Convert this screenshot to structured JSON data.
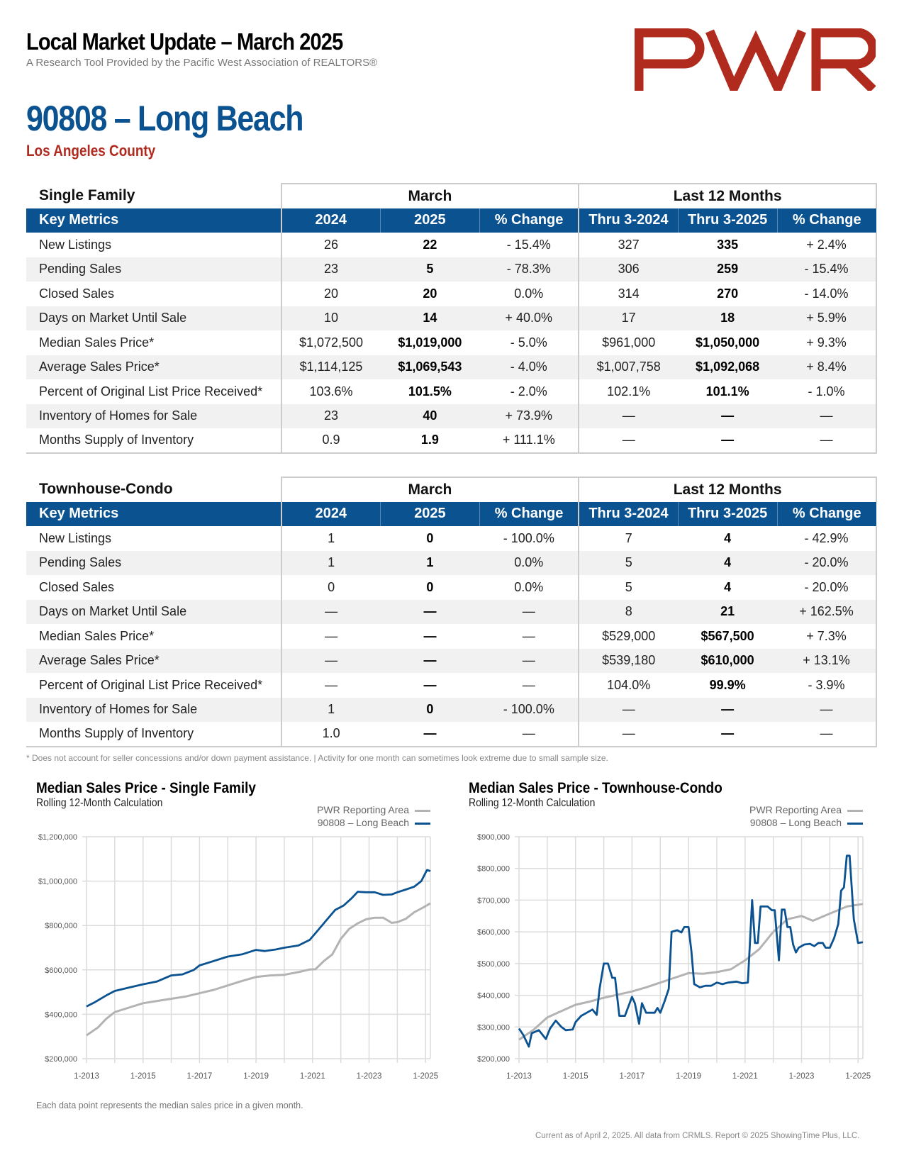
{
  "header": {
    "title": "Local Market Update – March 2025",
    "subtitle": "A Research Tool Provided by the Pacific West Association of REALTORS®",
    "logo_text": "PWR",
    "area_title": "90808 – Long Beach",
    "county": "Los Angeles County"
  },
  "colors": {
    "brand_blue": "#0b5291",
    "brand_red": "#b02a1e",
    "pwr_line": "#b3b3b3",
    "area_line": "#0b5291"
  },
  "tables": [
    {
      "section": "Single Family",
      "group_march": "March",
      "group_12m": "Last 12 Months",
      "columns": [
        "Key Metrics",
        "2024",
        "2025",
        "% Change",
        "Thru 3-2024",
        "Thru 3-2025",
        "% Change"
      ],
      "rows": [
        [
          "New Listings",
          "26",
          "22",
          "- 15.4%",
          "327",
          "335",
          "+ 2.4%"
        ],
        [
          "Pending Sales",
          "23",
          "5",
          "- 78.3%",
          "306",
          "259",
          "- 15.4%"
        ],
        [
          "Closed Sales",
          "20",
          "20",
          "0.0%",
          "314",
          "270",
          "- 14.0%"
        ],
        [
          "Days on Market Until Sale",
          "10",
          "14",
          "+ 40.0%",
          "17",
          "18",
          "+ 5.9%"
        ],
        [
          "Median Sales Price*",
          "$1,072,500",
          "$1,019,000",
          "- 5.0%",
          "$961,000",
          "$1,050,000",
          "+ 9.3%"
        ],
        [
          "Average Sales Price*",
          "$1,114,125",
          "$1,069,543",
          "- 4.0%",
          "$1,007,758",
          "$1,092,068",
          "+ 8.4%"
        ],
        [
          "Percent of Original List Price Received*",
          "103.6%",
          "101.5%",
          "- 2.0%",
          "102.1%",
          "101.1%",
          "- 1.0%"
        ],
        [
          "Inventory of Homes for Sale",
          "23",
          "40",
          "+ 73.9%",
          "—",
          "—",
          "—"
        ],
        [
          "Months Supply of Inventory",
          "0.9",
          "1.9",
          "+ 111.1%",
          "—",
          "—",
          "—"
        ]
      ]
    },
    {
      "section": "Townhouse-Condo",
      "group_march": "March",
      "group_12m": "Last 12 Months",
      "columns": [
        "Key Metrics",
        "2024",
        "2025",
        "% Change",
        "Thru 3-2024",
        "Thru 3-2025",
        "% Change"
      ],
      "rows": [
        [
          "New Listings",
          "1",
          "0",
          "- 100.0%",
          "7",
          "4",
          "- 42.9%"
        ],
        [
          "Pending Sales",
          "1",
          "1",
          "0.0%",
          "5",
          "4",
          "- 20.0%"
        ],
        [
          "Closed Sales",
          "0",
          "0",
          "0.0%",
          "5",
          "4",
          "- 20.0%"
        ],
        [
          "Days on Market Until Sale",
          "—",
          "—",
          "—",
          "8",
          "21",
          "+ 162.5%"
        ],
        [
          "Median Sales Price*",
          "—",
          "—",
          "—",
          "$529,000",
          "$567,500",
          "+ 7.3%"
        ],
        [
          "Average Sales Price*",
          "—",
          "—",
          "—",
          "$539,180",
          "$610,000",
          "+ 13.1%"
        ],
        [
          "Percent of Original List Price Received*",
          "—",
          "—",
          "—",
          "104.0%",
          "99.9%",
          "- 3.9%"
        ],
        [
          "Inventory of Homes for Sale",
          "1",
          "0",
          "- 100.0%",
          "—",
          "—",
          "—"
        ],
        [
          "Months Supply of Inventory",
          "1.0",
          "—",
          "—",
          "—",
          "—",
          "—"
        ]
      ]
    }
  ],
  "footnote": "* Does not account for seller concessions and/or down payment assistance. | Activity for one month can sometimes look extreme due to small sample size.",
  "chart_note": "Each data point represents the median sales price in a given month.",
  "footer": "Current as of April 2, 2025. All data from CRMLS. Report © 2025 ShowingTime Plus, LLC.",
  "chart_data": [
    {
      "type": "line",
      "title": "Median Sales Price - Single Family",
      "subtitle": "Rolling 12-Month Calculation",
      "xlabel": "",
      "ylabel": "",
      "x_range": [
        2013.0,
        2025.17
      ],
      "ylim": [
        200000,
        1200000
      ],
      "y_ticks": [
        200000,
        400000,
        600000,
        800000,
        1000000,
        1200000
      ],
      "y_tick_labels": [
        "$200,000",
        "$400,000",
        "$600,000",
        "$800,000",
        "$1,000,000",
        "$1,200,000"
      ],
      "x_ticks": [
        2013,
        2015,
        2017,
        2019,
        2021,
        2023,
        2025
      ],
      "x_tick_labels": [
        "1-2013",
        "1-2015",
        "1-2017",
        "1-2019",
        "1-2021",
        "1-2023",
        "1-2025"
      ],
      "grid": true,
      "legend_position": "top-right",
      "series": [
        {
          "name": "PWR Reporting Area",
          "color": "#b3b3b3",
          "points": [
            [
              2013.0,
              305000
            ],
            [
              2013.4,
              340000
            ],
            [
              2013.7,
              380000
            ],
            [
              2014.0,
              410000
            ],
            [
              2014.5,
              430000
            ],
            [
              2015.0,
              450000
            ],
            [
              2015.5,
              460000
            ],
            [
              2016.0,
              470000
            ],
            [
              2016.5,
              480000
            ],
            [
              2017.0,
              495000
            ],
            [
              2017.5,
              510000
            ],
            [
              2018.0,
              530000
            ],
            [
              2018.5,
              550000
            ],
            [
              2019.0,
              568000
            ],
            [
              2019.5,
              575000
            ],
            [
              2020.0,
              578000
            ],
            [
              2020.5,
              590000
            ],
            [
              2020.9,
              602000
            ],
            [
              2021.1,
              603000
            ],
            [
              2021.4,
              640000
            ],
            [
              2021.7,
              670000
            ],
            [
              2022.0,
              740000
            ],
            [
              2022.3,
              785000
            ],
            [
              2022.6,
              810000
            ],
            [
              2022.9,
              828000
            ],
            [
              2023.2,
              835000
            ],
            [
              2023.5,
              835000
            ],
            [
              2023.8,
              812000
            ],
            [
              2024.0,
              815000
            ],
            [
              2024.3,
              830000
            ],
            [
              2024.6,
              860000
            ],
            [
              2024.9,
              880000
            ],
            [
              2025.17,
              900000
            ]
          ]
        },
        {
          "name": "90808 – Long Beach",
          "color": "#0b5291",
          "points": [
            [
              2013.0,
              435000
            ],
            [
              2013.3,
              455000
            ],
            [
              2013.7,
              485000
            ],
            [
              2014.0,
              505000
            ],
            [
              2014.5,
              520000
            ],
            [
              2015.0,
              535000
            ],
            [
              2015.5,
              548000
            ],
            [
              2016.0,
              575000
            ],
            [
              2016.4,
              580000
            ],
            [
              2016.8,
              600000
            ],
            [
              2017.0,
              620000
            ],
            [
              2017.5,
              640000
            ],
            [
              2018.0,
              660000
            ],
            [
              2018.5,
              670000
            ],
            [
              2019.0,
              690000
            ],
            [
              2019.3,
              685000
            ],
            [
              2019.7,
              692000
            ],
            [
              2020.0,
              700000
            ],
            [
              2020.5,
              710000
            ],
            [
              2020.9,
              735000
            ],
            [
              2021.2,
              780000
            ],
            [
              2021.5,
              825000
            ],
            [
              2021.8,
              870000
            ],
            [
              2022.1,
              890000
            ],
            [
              2022.4,
              925000
            ],
            [
              2022.6,
              952000
            ],
            [
              2022.9,
              950000
            ],
            [
              2023.2,
              950000
            ],
            [
              2023.5,
              938000
            ],
            [
              2023.8,
              940000
            ],
            [
              2024.0,
              950000
            ],
            [
              2024.3,
              962000
            ],
            [
              2024.6,
              975000
            ],
            [
              2024.85,
              1000000
            ],
            [
              2025.05,
              1050000
            ],
            [
              2025.17,
              1045000
            ]
          ]
        }
      ]
    },
    {
      "type": "line",
      "title": "Median Sales Price - Townhouse-Condo",
      "subtitle": "Rolling 12-Month Calculation",
      "xlabel": "",
      "ylabel": "",
      "x_range": [
        2013.0,
        2025.17
      ],
      "ylim": [
        200000,
        900000
      ],
      "y_ticks": [
        200000,
        300000,
        400000,
        500000,
        600000,
        700000,
        800000,
        900000
      ],
      "y_tick_labels": [
        "$200,000",
        "$300,000",
        "$400,000",
        "$500,000",
        "$600,000",
        "$700,000",
        "$800,000",
        "$900,000"
      ],
      "x_ticks": [
        2013,
        2015,
        2017,
        2019,
        2021,
        2023,
        2025
      ],
      "x_tick_labels": [
        "1-2013",
        "1-2015",
        "1-2017",
        "1-2019",
        "1-2021",
        "1-2023",
        "1-2025"
      ],
      "grid": true,
      "legend_position": "top-right",
      "series": [
        {
          "name": "PWR Reporting Area",
          "color": "#b3b3b3",
          "points": [
            [
              2013.0,
              260000
            ],
            [
              2013.5,
              290000
            ],
            [
              2014.0,
              330000
            ],
            [
              2014.5,
              350000
            ],
            [
              2015.0,
              370000
            ],
            [
              2015.5,
              380000
            ],
            [
              2016.0,
              392000
            ],
            [
              2016.5,
              402000
            ],
            [
              2017.0,
              412000
            ],
            [
              2017.5,
              425000
            ],
            [
              2018.0,
              440000
            ],
            [
              2018.5,
              455000
            ],
            [
              2019.0,
              470000
            ],
            [
              2019.5,
              468000
            ],
            [
              2020.0,
              473000
            ],
            [
              2020.5,
              482000
            ],
            [
              2021.0,
              510000
            ],
            [
              2021.5,
              545000
            ],
            [
              2022.0,
              600000
            ],
            [
              2022.5,
              640000
            ],
            [
              2023.0,
              650000
            ],
            [
              2023.4,
              635000
            ],
            [
              2023.8,
              650000
            ],
            [
              2024.2,
              665000
            ],
            [
              2024.6,
              680000
            ],
            [
              2025.17,
              688000
            ]
          ]
        },
        {
          "name": "90808 – Long Beach",
          "color": "#0b5291",
          "points": [
            [
              2013.0,
              295000
            ],
            [
              2013.15,
              275000
            ],
            [
              2013.35,
              238000
            ],
            [
              2013.45,
              280000
            ],
            [
              2013.7,
              290000
            ],
            [
              2013.95,
              262000
            ],
            [
              2014.1,
              295000
            ],
            [
              2014.3,
              320000
            ],
            [
              2014.5,
              300000
            ],
            [
              2014.65,
              290000
            ],
            [
              2014.9,
              292000
            ],
            [
              2015.0,
              315000
            ],
            [
              2015.2,
              335000
            ],
            [
              2015.4,
              345000
            ],
            [
              2015.6,
              355000
            ],
            [
              2015.75,
              338000
            ],
            [
              2015.85,
              420000
            ],
            [
              2016.0,
              500000
            ],
            [
              2016.15,
              500000
            ],
            [
              2016.3,
              455000
            ],
            [
              2016.4,
              455000
            ],
            [
              2016.55,
              335000
            ],
            [
              2016.75,
              335000
            ],
            [
              2017.0,
              395000
            ],
            [
              2017.1,
              375000
            ],
            [
              2017.25,
              310000
            ],
            [
              2017.35,
              375000
            ],
            [
              2017.5,
              345000
            ],
            [
              2017.8,
              345000
            ],
            [
              2017.9,
              360000
            ],
            [
              2018.0,
              345000
            ],
            [
              2018.15,
              380000
            ],
            [
              2018.3,
              420000
            ],
            [
              2018.4,
              600000
            ],
            [
              2018.6,
              605000
            ],
            [
              2018.75,
              598000
            ],
            [
              2018.85,
              615000
            ],
            [
              2019.0,
              615000
            ],
            [
              2019.1,
              540000
            ],
            [
              2019.2,
              435000
            ],
            [
              2019.4,
              425000
            ],
            [
              2019.6,
              430000
            ],
            [
              2019.8,
              430000
            ],
            [
              2020.0,
              440000
            ],
            [
              2020.2,
              435000
            ],
            [
              2020.4,
              440000
            ],
            [
              2020.7,
              443000
            ],
            [
              2020.9,
              438000
            ],
            [
              2021.1,
              440000
            ],
            [
              2021.25,
              700000
            ],
            [
              2021.35,
              565000
            ],
            [
              2021.45,
              565000
            ],
            [
              2021.55,
              680000
            ],
            [
              2021.8,
              680000
            ],
            [
              2021.95,
              668000
            ],
            [
              2022.05,
              668000
            ],
            [
              2022.2,
              510000
            ],
            [
              2022.3,
              670000
            ],
            [
              2022.4,
              670000
            ],
            [
              2022.5,
              615000
            ],
            [
              2022.6,
              615000
            ],
            [
              2022.7,
              560000
            ],
            [
              2022.8,
              535000
            ],
            [
              2022.9,
              550000
            ],
            [
              2023.1,
              560000
            ],
            [
              2023.3,
              562000
            ],
            [
              2023.45,
              555000
            ],
            [
              2023.6,
              565000
            ],
            [
              2023.75,
              565000
            ],
            [
              2023.85,
              550000
            ],
            [
              2024.0,
              550000
            ],
            [
              2024.15,
              580000
            ],
            [
              2024.3,
              625000
            ],
            [
              2024.4,
              730000
            ],
            [
              2024.5,
              740000
            ],
            [
              2024.6,
              840000
            ],
            [
              2024.7,
              840000
            ],
            [
              2024.85,
              640000
            ],
            [
              2024.95,
              590000
            ],
            [
              2025.0,
              565000
            ],
            [
              2025.17,
              567500
            ]
          ]
        }
      ]
    }
  ]
}
